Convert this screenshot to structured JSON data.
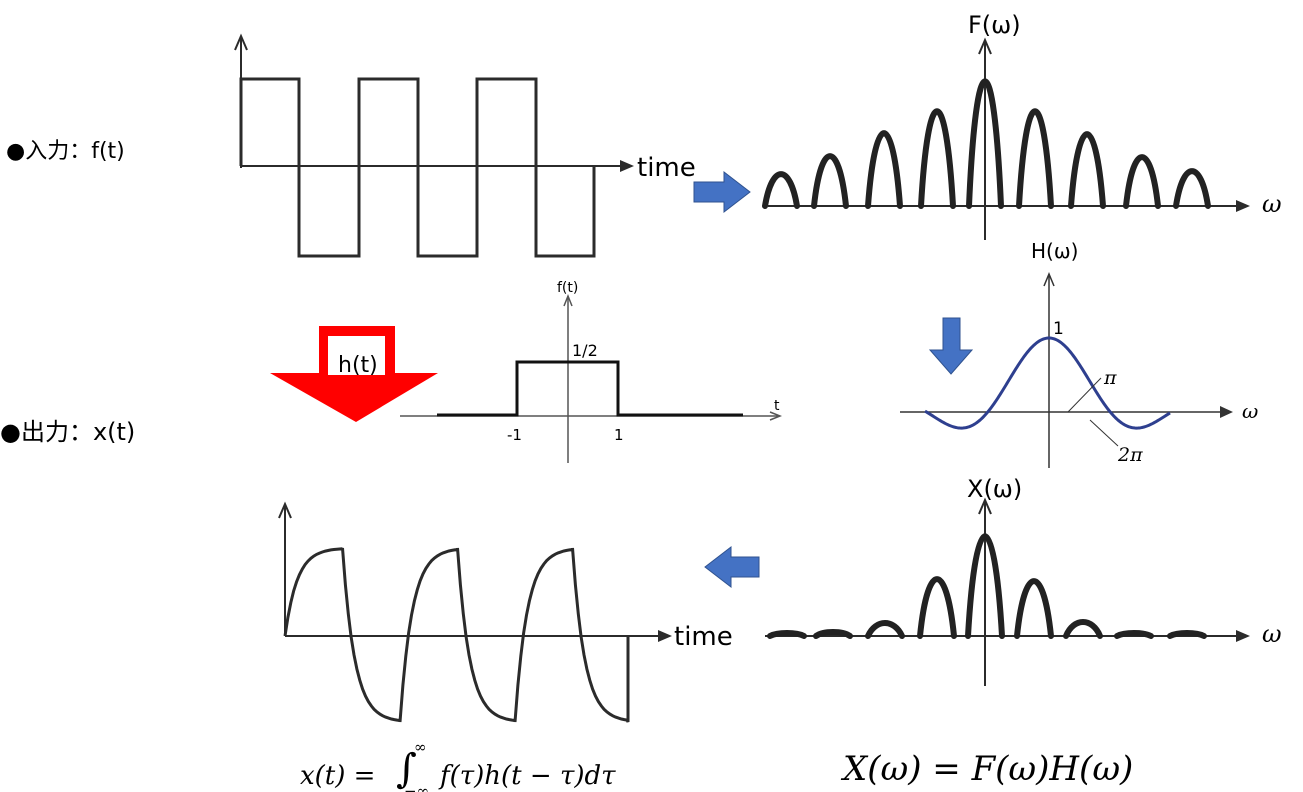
{
  "labels": {
    "input": "●入力：f(t)",
    "output": "●出力：x(t)",
    "time_top": "time",
    "time_bottom": "time",
    "F_omega": "F(ω)",
    "H_omega": "H(ω)",
    "X_omega": "X(ω)",
    "omega_F": "ω",
    "omega_H": "ω",
    "omega_X": "ω",
    "ht_label": "h(t)"
  },
  "rect_pulse": {
    "ylabel": "f(t)",
    "xlabel": "t",
    "height_label": "1/2",
    "tick_left": "-1",
    "tick_right": "1"
  },
  "filter_labels": {
    "peak": "1",
    "pi": "π",
    "two_pi": "2π"
  },
  "formulas": {
    "convolution_lhs": "x(t) = ",
    "convolution_integral": "∫",
    "convolution_upper": "∞",
    "convolution_lower": "−∞",
    "convolution_rhs": "f(τ)h(t − τ)dτ",
    "product": "X(ω) = F(ω)H(ω)"
  },
  "colors": {
    "line": "#2b2b2b",
    "arrow_blue": "#4472c4",
    "arrow_red": "#ff0000",
    "filter_curve": "#2e3f8f"
  }
}
